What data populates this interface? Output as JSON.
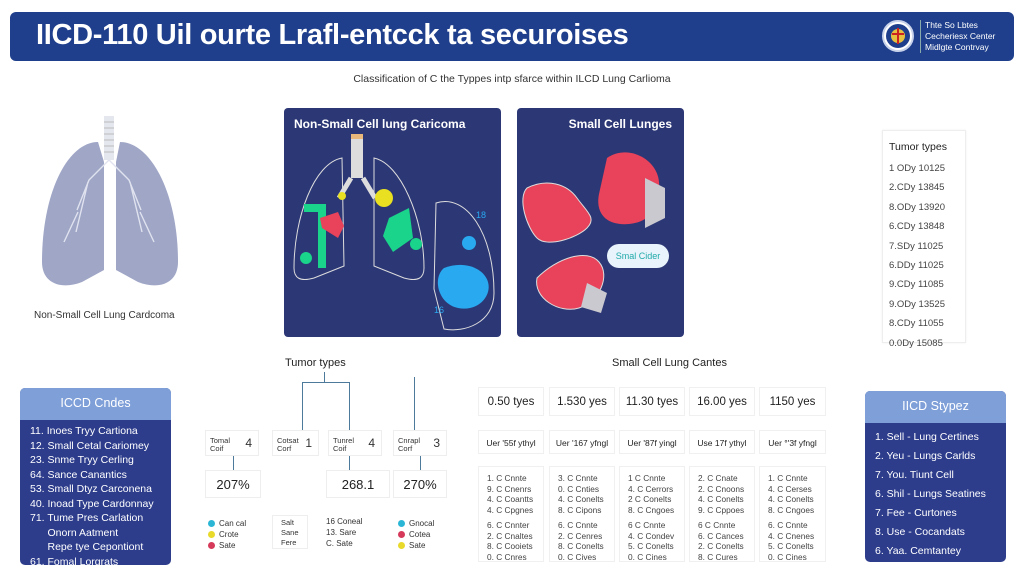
{
  "header": {
    "title": "IICD-110 Uil ourte Lrafl-entcck ta securoises",
    "logo_lines": [
      "Thte So Lbtes",
      "Cecheriesx Center",
      "Midlgte Contrvay"
    ]
  },
  "subtitle": "Classification of C the Typpes intp sfarce within ILCD Lung Carlioma",
  "illustration": {
    "caption": "Non-Small Cell Lung Cardcoma"
  },
  "panels": [
    {
      "title": "Non-Small Cell lung Caricoma",
      "labels": [
        "18",
        "16"
      ]
    },
    {
      "title": "Small Cell Lunges",
      "bubble": "Smal Cider"
    }
  ],
  "tumor_table": {
    "title": "Tumor types",
    "rows": [
      "1 ODy  10125",
      "2.CDy  13845",
      "8.ODy  13920",
      "6.CDy  13848",
      "7.SDy  11025",
      "6.DDy  11025",
      "9.CDy  11085",
      "9.ODy  13525",
      "8.CDy  11055",
      "0.0Dy  15085"
    ]
  },
  "icd_codes": {
    "title": "ICCD Cndes",
    "items": [
      "11. Inoes Tryy Cartiona",
      "12. Small Cetal Cariomey",
      "23. Snme Tryy Cerling",
      "64. Sance Canantics",
      "53. Small Dtyz Carconena",
      "40. Inoad Type Cardonnay",
      "71. Tume Pres Carlation",
      "      Onorn Aatment",
      "      Repe tye Cepontiont",
      "61. Fomal Lorgrats"
    ]
  },
  "tree": {
    "title": "Tumor types",
    "nodes": [
      {
        "label": "Tomal Coif",
        "num": "4"
      },
      {
        "label": "Cotsat Corf",
        "num": "1"
      },
      {
        "label": "Tunrel Coif",
        "num": "4"
      },
      {
        "label": "Cnrapl Corf",
        "num": "3"
      }
    ],
    "values": [
      "207%",
      "268.1",
      "270%"
    ],
    "legend_left": [
      {
        "text": "Can cal",
        "color": "#2bb6d6"
      },
      {
        "text": "Crote",
        "color": "#e8d92a"
      },
      {
        "text": "Sate",
        "color": "#d63a5a"
      }
    ],
    "center_box": [
      "Salt",
      "Sane",
      "Fere"
    ],
    "center_list": [
      "16 Coneal",
      "13. Sare",
      "C. Sate"
    ],
    "legend_right": [
      {
        "text": "Gnocal",
        "color": "#2bb6d6"
      },
      {
        "text": "Cotea",
        "color": "#d63a5a"
      },
      {
        "text": "Sate",
        "color": "#e8d92a"
      }
    ]
  },
  "small_cell": {
    "title": "Small Cell Lung Cantes",
    "years": [
      "0.50 tyes",
      "1.530 yes",
      "11.30 tyes",
      "16.00 yes",
      "1150 yes"
    ],
    "sub": [
      "Uer '55f ythyl",
      "Uer '167 yfngl",
      "Uer '87f yingl",
      "Use 17f ythyl",
      "Uer °'3f yfngl"
    ],
    "lists": [
      [
        "1. C Cnnte",
        "9. C Cnenrs",
        "4. C Coantts",
        "4. C Cpgnes",
        "6. C Cnnter",
        "2. C Cnaltes",
        "8. C Cooiets",
        "0. C Cnres"
      ],
      [
        "3. C Cnnte",
        "0. C Cnties",
        "4. C Conelts",
        "8. C Cipons",
        "6. C Cnnte",
        "2. C Cenres",
        "8. C Conelts",
        "0. C Cives"
      ],
      [
        "1 C Cnnte",
        "4. C Cerrors",
        "2 C Conelts",
        "8. C Cngoes",
        "6 C Cnnte",
        "4. C Condev",
        "5. C Conelts",
        "0. C Cines"
      ],
      [
        "2. C Cnate",
        "2. C Cnoons",
        "4. C Conelts",
        "9. C Cppoes",
        "6 C Cnnte",
        "6. C Cances",
        "2. C Conelts",
        "8. C Cures"
      ],
      [
        "1. C Cnnte",
        "4. C Cerses",
        "4. C Conelts",
        "8. C Cngoes",
        "6. C Cnnte",
        "4. C Cnenes",
        "5. C Conelts",
        "0. C Cines"
      ]
    ]
  },
  "icd_types": {
    "title": "IICD Stypez",
    "items": [
      "1. Sell - Lung Certines",
      "2. Yeu - Lungs Carlds",
      "7. You. Tiunt Cell",
      "6. Shil - Lungs Seatines",
      "7. Fee - Curtones",
      "8. Use - Cocandats",
      "6. Yaa. Cemtantey"
    ]
  },
  "colors": {
    "header": "#1f3f8c",
    "panel": "#2c3775",
    "box_header": "#7f9fd9",
    "box_body": "#2d3d8c",
    "tumor_red": "#e8435a",
    "tumor_green": "#19d48a",
    "tumor_yellow": "#e8e020",
    "tumor_blue": "#29a9f0"
  }
}
